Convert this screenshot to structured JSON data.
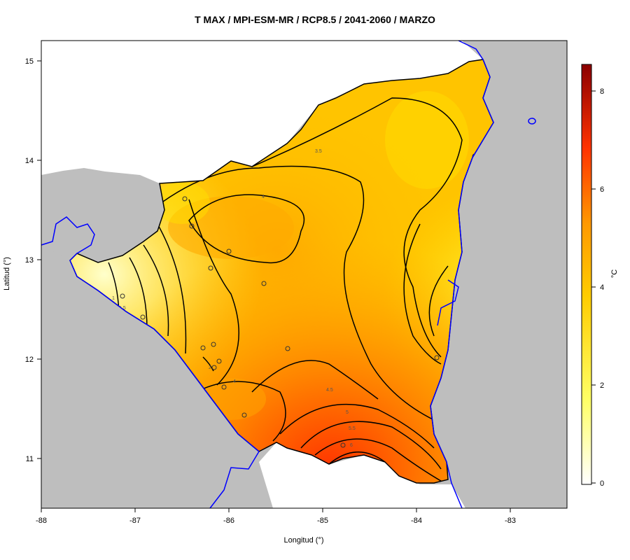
{
  "title": "T MAX / MPI-ESM-MR / RCP8.5 / 2041-2060 / MARZO",
  "axes": {
    "xlabel": "Longitud (°)",
    "ylabel": "Latitud (°)",
    "xticks": [
      "-88",
      "-87",
      "-86",
      "-85",
      "-84",
      "-83"
    ],
    "yticks": [
      "11",
      "12",
      "13",
      "14",
      "15"
    ],
    "xlim": [
      -88,
      -82.4
    ],
    "ylim": [
      10.5,
      15.2
    ]
  },
  "colorbar": {
    "unit": "°C",
    "ticks": [
      "0",
      "2",
      "4",
      "6",
      "8"
    ],
    "range": [
      -0.1,
      8.6
    ],
    "colors": [
      "#ffffff",
      "#ffff66",
      "#ffdd00",
      "#ff9900",
      "#ff3300",
      "#8b0000"
    ]
  },
  "contour_labels": [
    "1",
    "1.5",
    "2",
    "3.5",
    "4",
    "4",
    "4.5",
    "5",
    "5.5",
    "6"
  ],
  "colors": {
    "land_mask": "#bebebe",
    "coastline": "#0000ff",
    "border": "#000000"
  }
}
